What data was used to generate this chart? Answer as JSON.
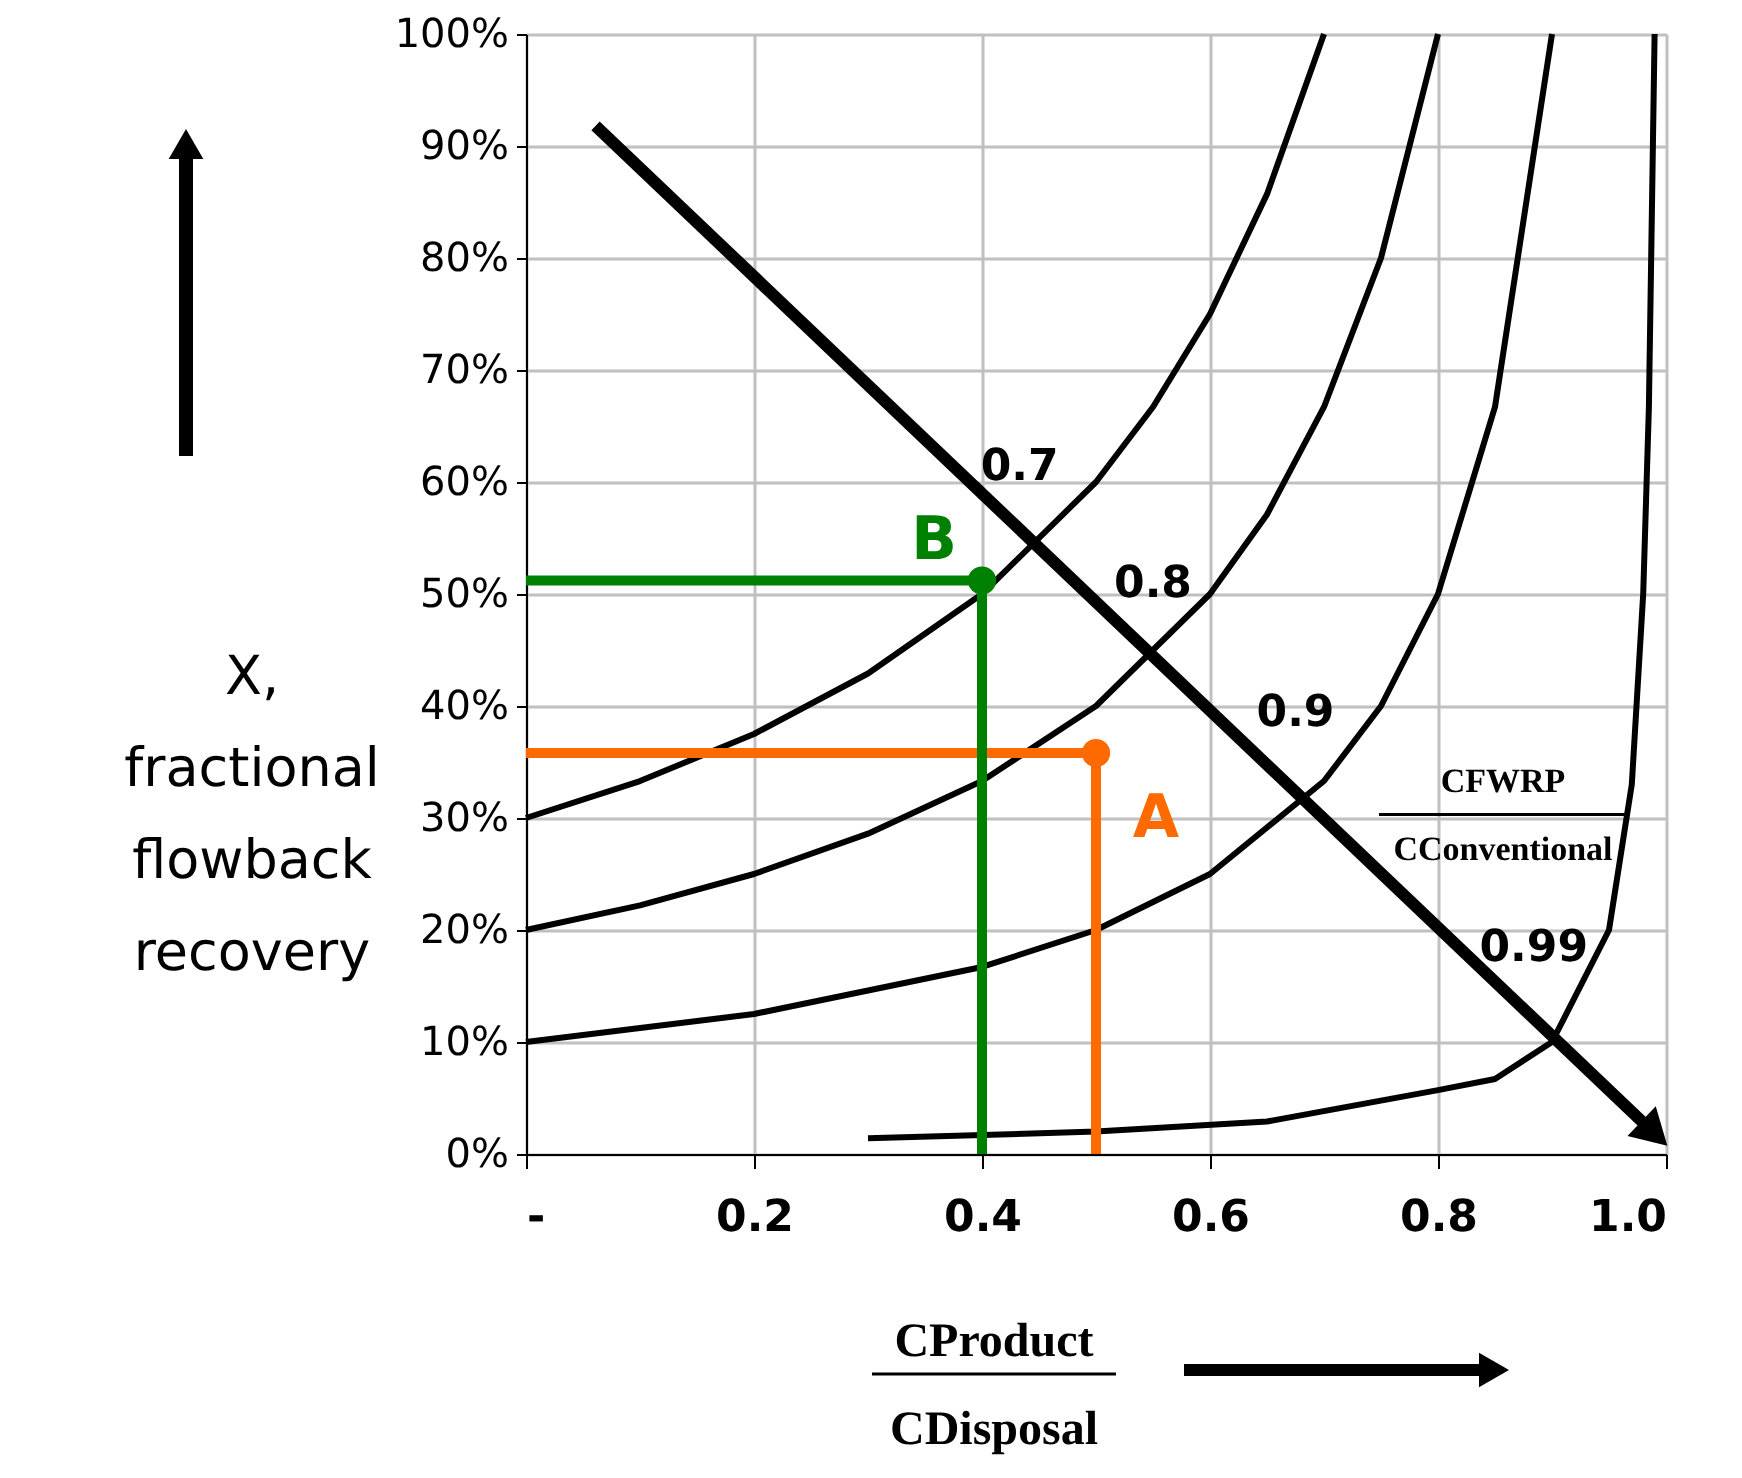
{
  "chart_data": {
    "type": "line",
    "xlabel": "CProduct\nCDisposal",
    "ylabel": "X,\nfractional\nflowback\nrecovery",
    "xlim": [
      0,
      1.0
    ],
    "ylim": [
      0,
      100
    ],
    "xticks": [
      {
        "value": 0,
        "label": "-"
      },
      0.2,
      0.4,
      0.6,
      0.8,
      {
        "value": 1.0,
        "label": "1.0"
      }
    ],
    "yticks": [
      {
        "value": 0,
        "label": "0%"
      },
      {
        "value": 10,
        "label": "10%"
      },
      {
        "value": 20,
        "label": "20%"
      },
      {
        "value": 30,
        "label": "30%"
      },
      {
        "value": 40,
        "label": "40%"
      },
      {
        "value": 50,
        "label": "50%"
      },
      {
        "value": 60,
        "label": "60%"
      },
      {
        "value": 70,
        "label": "70%"
      },
      {
        "value": 80,
        "label": "80%"
      },
      {
        "value": 90,
        "label": "90%"
      },
      {
        "value": 100,
        "label": "100%"
      }
    ],
    "grid": true,
    "line_style": "solid",
    "series": [
      {
        "color": "#000000",
        "x": [
          0,
          0.1,
          0.2,
          0.3,
          0.4,
          0.5,
          0.55,
          0.6,
          0.65,
          0.7
        ],
        "values": [
          30,
          33.3,
          37.5,
          42.9,
          50,
          60,
          66.7,
          75,
          85.7,
          100
        ]
      },
      {
        "color": "#000000",
        "x": [
          0,
          0.1,
          0.2,
          0.3,
          0.4,
          0.5,
          0.6,
          0.65,
          0.7,
          0.75,
          0.8
        ],
        "values": [
          20,
          22.2,
          25,
          28.6,
          33.3,
          40,
          50,
          57.1,
          66.7,
          80,
          100
        ]
      },
      {
        "color": "#000000",
        "x": [
          0,
          0.2,
          0.4,
          0.5,
          0.6,
          0.7,
          0.75,
          0.8,
          0.85,
          0.9
        ],
        "values": [
          10,
          12.5,
          16.7,
          20,
          25,
          33.3,
          40,
          50,
          66.7,
          100
        ]
      },
      {
        "color": "#000000",
        "x": [
          0.3,
          0.5,
          0.65,
          0.8,
          0.85,
          0.9,
          0.95,
          0.97,
          0.98,
          0.985,
          0.99
        ],
        "values": [
          1.4,
          2,
          2.9,
          5.7,
          6.7,
          10,
          20,
          33,
          50,
          66.7,
          100
        ]
      },
      {
        "color": "#000000",
        "x": [
          0.061,
          0.981
        ],
        "values": [
          91.8,
          2.7
        ]
      },
      {
        "color": "#ff6a00",
        "x": [
          0,
          0.5,
          0.5
        ],
        "values": [
          35.8,
          35.8,
          0
        ]
      },
      {
        "type": "scatter",
        "name": "A",
        "color": "#ff6a00",
        "marker": "circle",
        "x": [
          0.5
        ],
        "values": [
          35.8
        ]
      },
      {
        "color": "#008000",
        "x": [
          0,
          0.4,
          0.4
        ],
        "values": [
          51.2,
          51.2,
          0
        ]
      },
      {
        "type": "scatter",
        "name": "B",
        "color": "#008000",
        "marker": "circle",
        "x": [
          0.4
        ],
        "values": [
          51.2
        ]
      }
    ],
    "annotations": [
      "0.7",
      "0.8",
      "0.9",
      "0.99",
      "CFWRP\nCConventional"
    ]
  }
}
